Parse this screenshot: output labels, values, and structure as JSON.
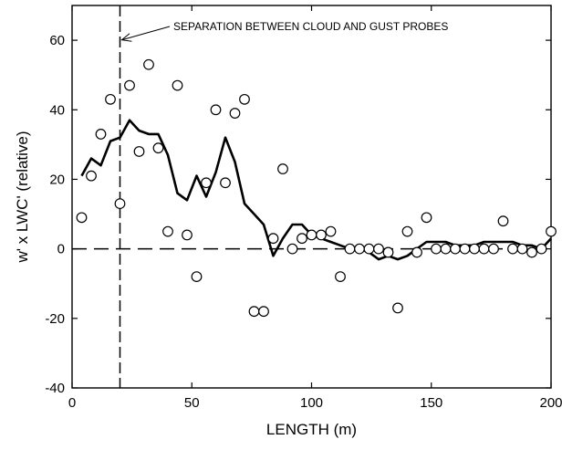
{
  "chart_data": {
    "type": "scatter",
    "xlabel": "LENGTH (m)",
    "ylabel": "w' x LWC' (relative)",
    "xlim": [
      0,
      200
    ],
    "ylim": [
      -40,
      70
    ],
    "x_ticks": [
      0,
      50,
      100,
      150,
      200
    ],
    "y_ticks": [
      -40,
      -20,
      0,
      20,
      40,
      60
    ],
    "grid": false,
    "annotation": {
      "text": "SEPARATION BETWEEN CLOUD AND GUST PROBES",
      "points_to": {
        "x": 20,
        "y": 58
      }
    },
    "reference_lines": {
      "vertical_dashed_x": 20,
      "horizontal_dashed_y": 0
    },
    "series": [
      {
        "type": "scatter",
        "marker": "open-circle",
        "points": [
          [
            4,
            9
          ],
          [
            8,
            21
          ],
          [
            12,
            33
          ],
          [
            16,
            43
          ],
          [
            20,
            13
          ],
          [
            24,
            47
          ],
          [
            28,
            28
          ],
          [
            32,
            53
          ],
          [
            36,
            29
          ],
          [
            40,
            5
          ],
          [
            44,
            47
          ],
          [
            48,
            4
          ],
          [
            52,
            -8
          ],
          [
            56,
            19
          ],
          [
            60,
            40
          ],
          [
            64,
            19
          ],
          [
            68,
            39
          ],
          [
            72,
            43
          ],
          [
            76,
            -18
          ],
          [
            80,
            -18
          ],
          [
            84,
            3
          ],
          [
            88,
            23
          ],
          [
            92,
            0
          ],
          [
            96,
            3
          ],
          [
            100,
            4
          ],
          [
            104,
            4
          ],
          [
            108,
            5
          ],
          [
            112,
            -8
          ],
          [
            116,
            0
          ],
          [
            120,
            0
          ],
          [
            124,
            0
          ],
          [
            128,
            0
          ],
          [
            132,
            -1
          ],
          [
            136,
            -17
          ],
          [
            140,
            5
          ],
          [
            144,
            -1
          ],
          [
            148,
            9
          ],
          [
            152,
            0
          ],
          [
            156,
            0
          ],
          [
            160,
            0
          ],
          [
            164,
            0
          ],
          [
            168,
            0
          ],
          [
            172,
            0
          ],
          [
            176,
            0
          ],
          [
            180,
            8
          ],
          [
            184,
            0
          ],
          [
            188,
            0
          ],
          [
            192,
            -1
          ],
          [
            196,
            0
          ],
          [
            200,
            5
          ]
        ]
      },
      {
        "type": "line",
        "points": [
          [
            4,
            21
          ],
          [
            8,
            26
          ],
          [
            12,
            24
          ],
          [
            16,
            31
          ],
          [
            20,
            32
          ],
          [
            24,
            37
          ],
          [
            28,
            34
          ],
          [
            32,
            33
          ],
          [
            36,
            33
          ],
          [
            40,
            27
          ],
          [
            44,
            16
          ],
          [
            48,
            14
          ],
          [
            52,
            21
          ],
          [
            56,
            15
          ],
          [
            60,
            22
          ],
          [
            64,
            32
          ],
          [
            68,
            25
          ],
          [
            72,
            13
          ],
          [
            76,
            10
          ],
          [
            80,
            7
          ],
          [
            84,
            -2
          ],
          [
            88,
            3
          ],
          [
            92,
            7
          ],
          [
            96,
            7
          ],
          [
            100,
            4
          ],
          [
            104,
            3
          ],
          [
            108,
            2
          ],
          [
            112,
            1
          ],
          [
            116,
            0
          ],
          [
            120,
            0
          ],
          [
            124,
            -1
          ],
          [
            128,
            -3
          ],
          [
            132,
            -2
          ],
          [
            136,
            -3
          ],
          [
            140,
            -2
          ],
          [
            144,
            0
          ],
          [
            148,
            2
          ],
          [
            152,
            2
          ],
          [
            156,
            2
          ],
          [
            160,
            1
          ],
          [
            164,
            1
          ],
          [
            168,
            1
          ],
          [
            172,
            2
          ],
          [
            176,
            2
          ],
          [
            180,
            2
          ],
          [
            184,
            2
          ],
          [
            188,
            1
          ],
          [
            192,
            1
          ],
          [
            196,
            0
          ],
          [
            200,
            3
          ]
        ]
      }
    ]
  }
}
